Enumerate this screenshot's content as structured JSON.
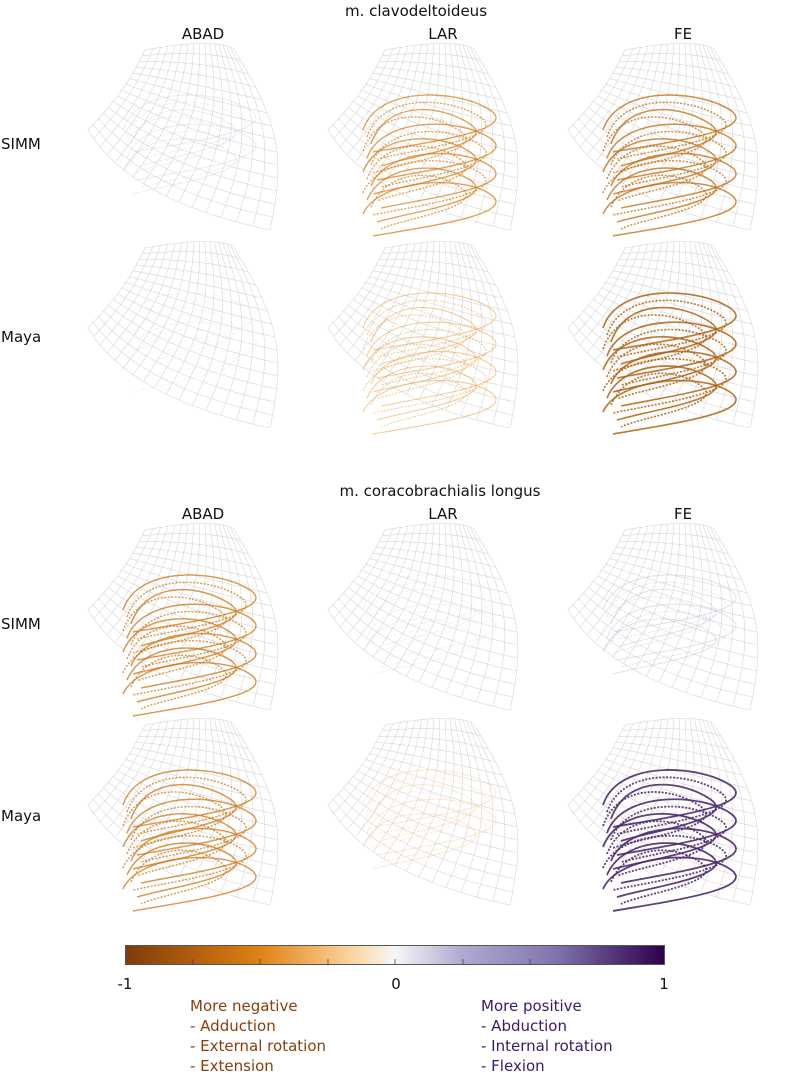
{
  "sections": [
    {
      "title": "m. clavodeltoideus",
      "columns": [
        "ABAD",
        "LAR",
        "FE"
      ],
      "rows": [
        {
          "label": "SIMM",
          "panels": [
            {
              "value": 0.15
            },
            {
              "value": -0.55
            },
            {
              "value": -0.65
            }
          ]
        },
        {
          "label": "Maya",
          "panels": [
            {
              "value": 0.08
            },
            {
              "value": -0.35
            },
            {
              "value": -0.75
            }
          ]
        }
      ]
    },
    {
      "title": "m. coracobrachialis longus",
      "columns": [
        "ABAD",
        "LAR",
        "FE"
      ],
      "rows": [
        {
          "label": "SIMM",
          "panels": [
            {
              "value": -0.6
            },
            {
              "value": 0.1
            },
            {
              "value": 0.2
            }
          ]
        },
        {
          "label": "Maya",
          "panels": [
            {
              "value": -0.6
            },
            {
              "value": -0.2
            },
            {
              "value": 0.85
            }
          ]
        }
      ]
    }
  ],
  "colorbar": {
    "min_label": "-1",
    "mid_label": "0",
    "max_label": "1",
    "colors": {
      "neg_end": "#7f3b08",
      "neg_mid": "#e08214",
      "neg_light": "#fdd49e",
      "zero": "#f7f7f7",
      "pos_light": "#b2abd2",
      "pos_mid": "#8073ac",
      "pos_end": "#2d004b"
    }
  },
  "legend": {
    "negative": {
      "heading": "More negative",
      "items": [
        "- Adduction",
        "- External rotation",
        "- Extension"
      ]
    },
    "positive": {
      "heading": "More positive",
      "items": [
        "- Abduction",
        "- Internal rotation",
        "- Flexion"
      ]
    }
  }
}
